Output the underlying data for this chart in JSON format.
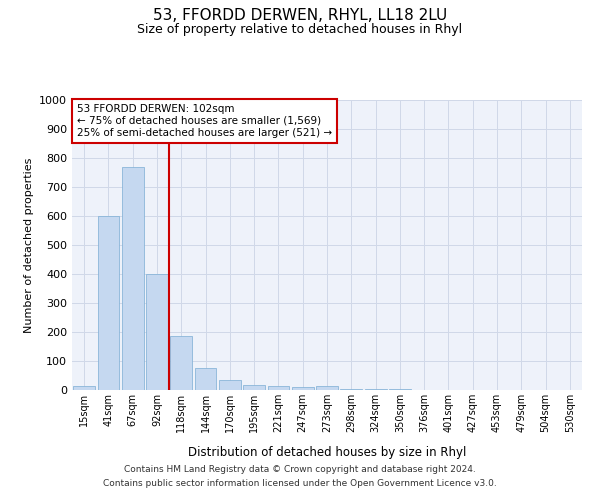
{
  "title": "53, FFORDD DERWEN, RHYL, LL18 2LU",
  "subtitle": "Size of property relative to detached houses in Rhyl",
  "xlabel": "Distribution of detached houses by size in Rhyl",
  "ylabel": "Number of detached properties",
  "footer_line1": "Contains HM Land Registry data © Crown copyright and database right 2024.",
  "footer_line2": "Contains public sector information licensed under the Open Government Licence v3.0.",
  "bin_labels": [
    "15sqm",
    "41sqm",
    "67sqm",
    "92sqm",
    "118sqm",
    "144sqm",
    "170sqm",
    "195sqm",
    "221sqm",
    "247sqm",
    "273sqm",
    "298sqm",
    "324sqm",
    "350sqm",
    "376sqm",
    "401sqm",
    "427sqm",
    "453sqm",
    "479sqm",
    "504sqm",
    "530sqm"
  ],
  "bar_values": [
    15,
    600,
    770,
    400,
    185,
    75,
    35,
    18,
    13,
    10,
    13,
    4,
    3,
    2,
    1,
    0,
    0,
    0,
    0,
    0,
    0
  ],
  "bar_color": "#c5d8f0",
  "bar_edge_color": "#7badd4",
  "vline_x": 3.5,
  "vline_color": "#cc0000",
  "annotation_text": "53 FFORDD DERWEN: 102sqm\n← 75% of detached houses are smaller (1,569)\n25% of semi-detached houses are larger (521) →",
  "annotation_box_color": "#ffffff",
  "annotation_box_edge": "#cc0000",
  "ylim": [
    0,
    1000
  ],
  "yticks": [
    0,
    100,
    200,
    300,
    400,
    500,
    600,
    700,
    800,
    900,
    1000
  ],
  "grid_color": "#d0d8e8",
  "bg_color": "#eef2fa",
  "title_fontsize": 11,
  "subtitle_fontsize": 9,
  "footer_fontsize": 6.5
}
